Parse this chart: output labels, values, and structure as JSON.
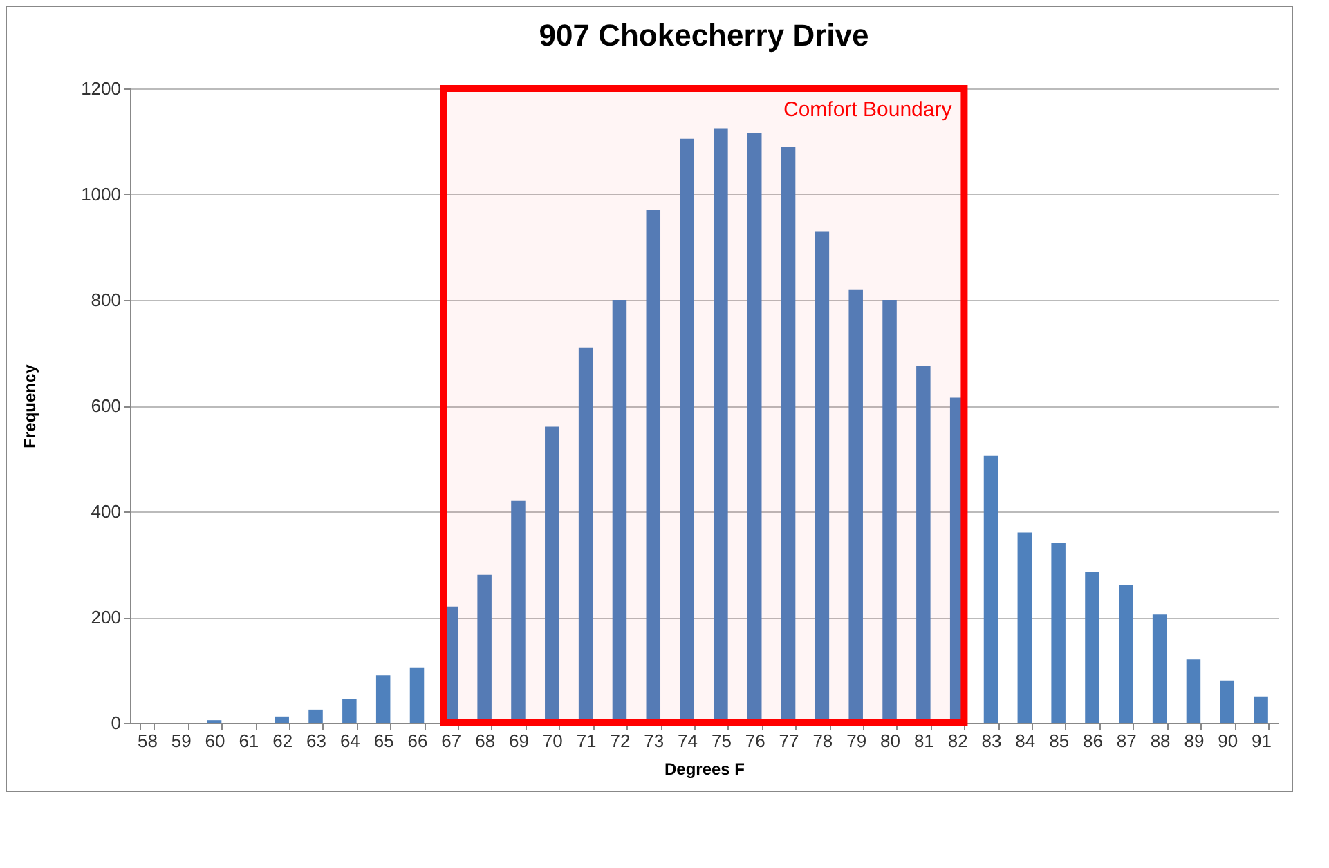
{
  "chart_data": {
    "type": "bar",
    "title": "907 Chokecherry Drive",
    "xlabel": "Degrees F",
    "ylabel": "Frequency",
    "categories": [
      "58",
      "59",
      "60",
      "61",
      "62",
      "63",
      "64",
      "65",
      "66",
      "67",
      "68",
      "69",
      "70",
      "71",
      "72",
      "73",
      "74",
      "75",
      "76",
      "77",
      "78",
      "79",
      "80",
      "81",
      "82",
      "83",
      "84",
      "85",
      "86",
      "87",
      "88",
      "89",
      "90",
      "91"
    ],
    "values": [
      0,
      0,
      5,
      0,
      12,
      25,
      45,
      90,
      105,
      220,
      280,
      420,
      560,
      710,
      800,
      970,
      1105,
      1125,
      1115,
      1090,
      930,
      820,
      800,
      675,
      615,
      505,
      360,
      340,
      285,
      260,
      205,
      120,
      80,
      50
    ],
    "color": "#4f81bd",
    "ylim": [
      0,
      1200
    ],
    "yticks": [
      0,
      200,
      400,
      600,
      800,
      1000,
      1200
    ],
    "grid": "y",
    "bands": [
      {
        "axis": "x",
        "from": "67",
        "to": "82",
        "label": "Comfort Boundary",
        "color": "#ff0000"
      }
    ]
  }
}
